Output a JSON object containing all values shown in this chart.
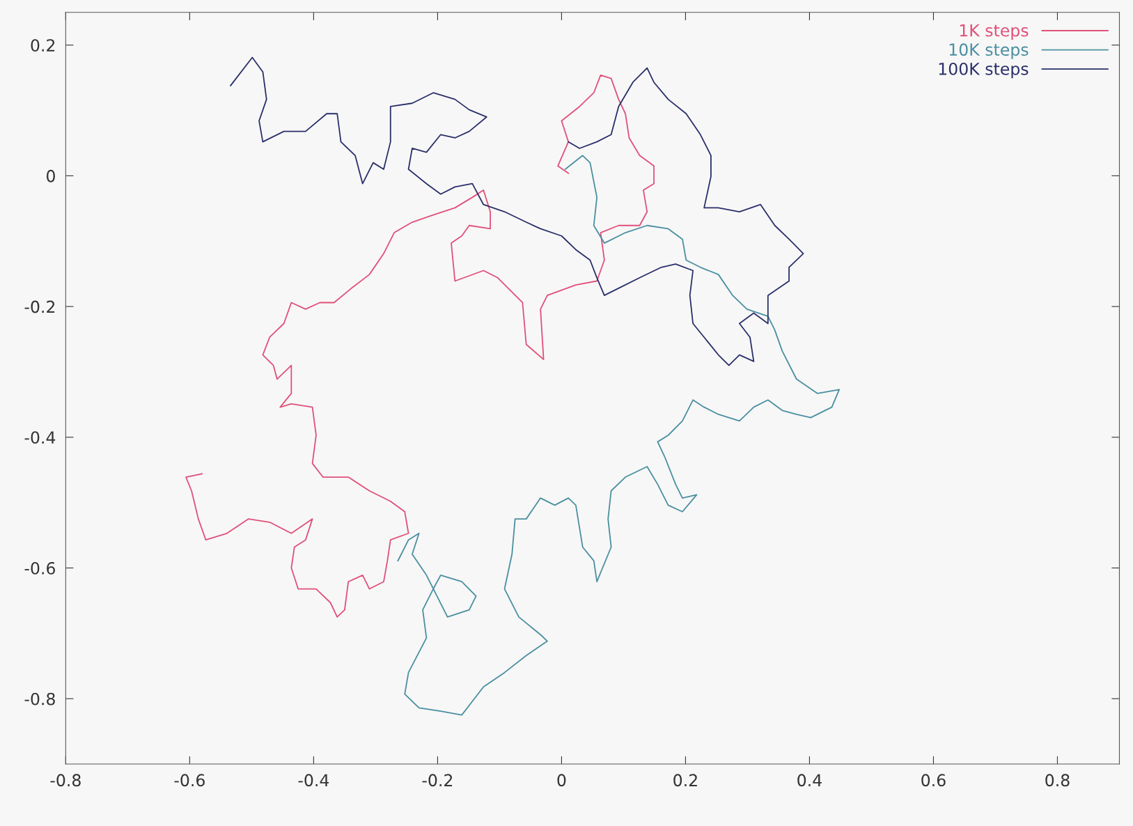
{
  "chart_data": {
    "type": "line",
    "legend": "top right",
    "grid": false,
    "line_style": "solid",
    "marker": "none",
    "xlim": [
      -0.8,
      0.9
    ],
    "ylim": [
      -0.9,
      0.25
    ],
    "xticks": [
      -0.8,
      -0.6,
      -0.4,
      -0.2,
      0,
      0.2,
      0.4,
      0.6,
      0.8
    ],
    "yticks": [
      -0.8,
      -0.6,
      -0.4,
      -0.2,
      0,
      0.2
    ],
    "series": [
      {
        "name": "1K steps",
        "color": "#e0507a",
        "x": [
          -0.58,
          -0.606,
          -0.597,
          -0.586,
          -0.574,
          -0.54,
          -0.505,
          -0.471,
          -0.436,
          -0.402,
          -0.413,
          -0.431,
          -0.436,
          -0.425,
          -0.396,
          -0.373,
          -0.362,
          -0.35,
          -0.344,
          -0.321,
          -0.31,
          -0.287,
          -0.281,
          -0.276,
          -0.247,
          -0.253,
          -0.276,
          -0.31,
          -0.344,
          -0.385,
          -0.402,
          -0.396,
          -0.402,
          -0.436,
          -0.454,
          -0.436,
          -0.436,
          -0.459,
          -0.465,
          -0.482,
          -0.471,
          -0.448,
          -0.436,
          -0.413,
          -0.39,
          -0.367,
          -0.339,
          -0.31,
          -0.287,
          -0.27,
          -0.241,
          -0.207,
          -0.172,
          -0.144,
          -0.126,
          -0.115,
          -0.115,
          -0.149,
          -0.161,
          -0.178,
          -0.172,
          -0.126,
          -0.103,
          -0.08,
          -0.063,
          -0.057,
          -0.029,
          -0.034,
          -0.023,
          0.023,
          0.057,
          0.069,
          0.063,
          0.092,
          0.126,
          0.138,
          0.132,
          0.149,
          0.149,
          0.126,
          0.109,
          0.103,
          0.092,
          0.08,
          0.063,
          0.052,
          0.029,
          0.0,
          0.011,
          -0.006,
          0.011
        ],
        "values": [
          -0.456,
          -0.461,
          -0.482,
          -0.525,
          -0.557,
          -0.547,
          -0.525,
          -0.53,
          -0.547,
          -0.525,
          -0.557,
          -0.568,
          -0.6,
          -0.632,
          -0.632,
          -0.653,
          -0.675,
          -0.664,
          -0.621,
          -0.611,
          -0.632,
          -0.621,
          -0.589,
          -0.557,
          -0.547,
          -0.514,
          -0.498,
          -0.482,
          -0.461,
          -0.461,
          -0.44,
          -0.397,
          -0.354,
          -0.349,
          -0.354,
          -0.333,
          -0.29,
          -0.311,
          -0.29,
          -0.274,
          -0.247,
          -0.226,
          -0.194,
          -0.204,
          -0.194,
          -0.194,
          -0.172,
          -0.151,
          -0.119,
          -0.087,
          -0.071,
          -0.06,
          -0.049,
          -0.033,
          -0.022,
          -0.055,
          -0.081,
          -0.076,
          -0.092,
          -0.103,
          -0.161,
          -0.145,
          -0.156,
          -0.178,
          -0.194,
          -0.258,
          -0.281,
          -0.204,
          -0.183,
          -0.167,
          -0.161,
          -0.129,
          -0.087,
          -0.076,
          -0.076,
          -0.055,
          -0.022,
          -0.012,
          0.015,
          0.031,
          0.058,
          0.095,
          0.117,
          0.149,
          0.154,
          0.127,
          0.106,
          0.084,
          0.052,
          0.015,
          0.004
        ]
      },
      {
        "name": "10K steps",
        "color": "#4a8fa0",
        "x": [
          0.006,
          0.034,
          0.046,
          0.057,
          0.052,
          0.069,
          0.103,
          0.138,
          0.172,
          0.195,
          0.201,
          0.224,
          0.253,
          0.276,
          0.299,
          0.333,
          0.344,
          0.356,
          0.379,
          0.413,
          0.448,
          0.436,
          0.402,
          0.379,
          0.356,
          0.333,
          0.31,
          0.287,
          0.253,
          0.23,
          0.212,
          0.195,
          0.172,
          0.155,
          0.166,
          0.184,
          0.195,
          0.218,
          0.195,
          0.172,
          0.155,
          0.138,
          0.103,
          0.08,
          0.075,
          0.08,
          0.057,
          0.052,
          0.034,
          0.023,
          0.011,
          -0.011,
          -0.034,
          -0.057,
          -0.075,
          -0.08,
          -0.092,
          -0.069,
          -0.034,
          -0.023,
          -0.057,
          -0.092,
          -0.126,
          -0.161,
          -0.195,
          -0.23,
          -0.253,
          -0.247,
          -0.218,
          -0.224,
          -0.207,
          -0.195,
          -0.161,
          -0.138,
          -0.149,
          -0.184,
          -0.218,
          -0.241,
          -0.23,
          -0.247,
          -0.264
        ],
        "values": [
          0.01,
          0.031,
          0.02,
          -0.033,
          -0.076,
          -0.103,
          -0.087,
          -0.076,
          -0.081,
          -0.097,
          -0.129,
          -0.14,
          -0.151,
          -0.183,
          -0.204,
          -0.215,
          -0.236,
          -0.268,
          -0.311,
          -0.333,
          -0.327,
          -0.354,
          -0.37,
          -0.365,
          -0.359,
          -0.343,
          -0.354,
          -0.375,
          -0.365,
          -0.354,
          -0.343,
          -0.375,
          -0.397,
          -0.407,
          -0.429,
          -0.472,
          -0.493,
          -0.488,
          -0.514,
          -0.504,
          -0.472,
          -0.445,
          -0.461,
          -0.482,
          -0.525,
          -0.568,
          -0.621,
          -0.589,
          -0.568,
          -0.504,
          -0.493,
          -0.504,
          -0.493,
          -0.525,
          -0.525,
          -0.579,
          -0.632,
          -0.675,
          -0.702,
          -0.712,
          -0.734,
          -0.76,
          -0.782,
          -0.825,
          -0.819,
          -0.814,
          -0.793,
          -0.76,
          -0.707,
          -0.664,
          -0.632,
          -0.611,
          -0.621,
          -0.643,
          -0.664,
          -0.675,
          -0.611,
          -0.579,
          -0.547,
          -0.557,
          -0.589
        ]
      },
      {
        "name": "100K steps",
        "color": "#2a2f6a",
        "x": [
          -0.534,
          -0.499,
          -0.482,
          -0.476,
          -0.488,
          -0.482,
          -0.448,
          -0.413,
          -0.379,
          -0.362,
          -0.356,
          -0.333,
          -0.321,
          -0.304,
          -0.287,
          -0.276,
          -0.276,
          -0.241,
          -0.207,
          -0.172,
          -0.149,
          -0.121,
          -0.149,
          -0.172,
          -0.195,
          -0.218,
          -0.241,
          -0.247,
          -0.218,
          -0.195,
          -0.172,
          -0.144,
          -0.126,
          -0.092,
          -0.057,
          -0.034,
          0.0,
          0.023,
          0.046,
          0.057,
          0.069,
          0.092,
          0.126,
          0.161,
          0.184,
          0.212,
          0.207,
          0.212,
          0.23,
          0.253,
          0.27,
          0.287,
          0.31,
          0.304,
          0.287,
          0.31,
          0.333,
          0.333,
          0.367,
          0.367,
          0.39,
          0.367,
          0.344,
          0.321,
          0.287,
          0.253,
          0.23,
          0.241,
          0.241,
          0.224,
          0.201,
          0.172,
          0.149,
          0.138,
          0.115,
          0.092,
          0.08,
          0.057,
          0.029,
          0.011
        ],
        "values": [
          0.138,
          0.181,
          0.159,
          0.117,
          0.084,
          0.052,
          0.068,
          0.068,
          0.095,
          0.095,
          0.052,
          0.031,
          -0.012,
          0.02,
          0.01,
          0.052,
          0.106,
          0.111,
          0.127,
          0.117,
          0.101,
          0.09,
          0.068,
          0.058,
          0.063,
          0.036,
          0.042,
          0.01,
          -0.012,
          -0.028,
          -0.017,
          -0.012,
          -0.044,
          -0.055,
          -0.071,
          -0.081,
          -0.092,
          -0.113,
          -0.129,
          -0.156,
          -0.183,
          -0.172,
          -0.156,
          -0.14,
          -0.135,
          -0.145,
          -0.183,
          -0.226,
          -0.247,
          -0.274,
          -0.29,
          -0.274,
          -0.284,
          -0.247,
          -0.226,
          -0.21,
          -0.226,
          -0.183,
          -0.161,
          -0.14,
          -0.119,
          -0.097,
          -0.076,
          -0.044,
          -0.055,
          -0.049,
          -0.049,
          -0.001,
          0.031,
          0.063,
          0.095,
          0.117,
          0.143,
          0.165,
          0.143,
          0.106,
          0.063,
          0.052,
          0.042,
          0.052
        ]
      }
    ]
  }
}
